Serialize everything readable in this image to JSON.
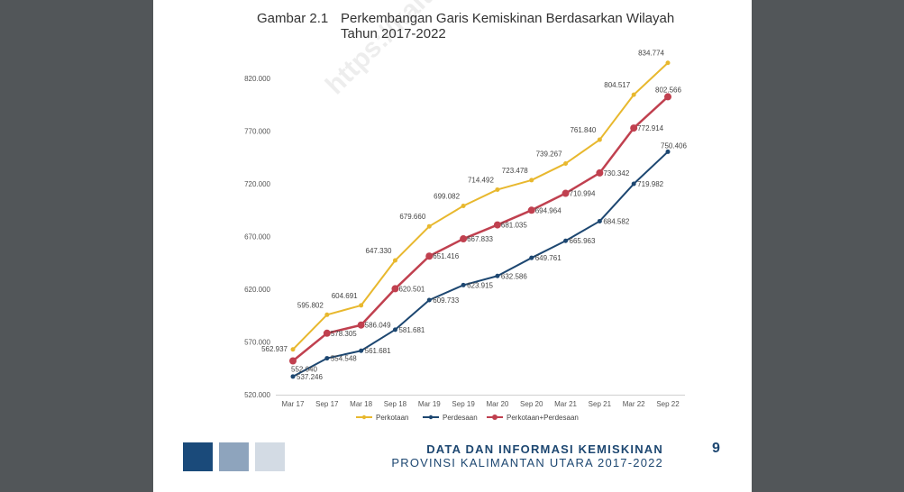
{
  "figure": {
    "number": "Gambar 2.1",
    "caption": "Perkembangan Garis Kemiskinan Berdasarkan Wilayah Tahun 2017-2022"
  },
  "watermark": "https://kaltara...",
  "footer": {
    "title": "DATA DAN INFORMASI KEMISKINAN",
    "subtitle": "PROVINSI KALIMANTAN UTARA 2017-2022",
    "page_number": "9",
    "squares": [
      "#1a4a7a",
      "#8ea4bd",
      "#d3dbe4"
    ]
  },
  "chart_data": {
    "type": "line",
    "title": "",
    "xlabel": "",
    "ylabel": "",
    "ylim": [
      520000,
      840000
    ],
    "yticks": [
      520000,
      570000,
      620000,
      670000,
      720000,
      770000,
      820000
    ],
    "ytick_labels": [
      "520.000",
      "570.000",
      "620.000",
      "670.000",
      "720.000",
      "770.000",
      "820.000"
    ],
    "categories": [
      "Mar 17",
      "Sep 17",
      "Mar 18",
      "Sep 18",
      "Mar 19",
      "Sep 19",
      "Mar 20",
      "Sep 20",
      "Mar 21",
      "Sep 21",
      "Mar 22",
      "Sep 22"
    ],
    "grid": false,
    "legend_position": "bottom",
    "series": [
      {
        "name": "Perkotaan",
        "color": "#e8b82e",
        "values": [
          562937,
          595802,
          604691,
          647330,
          679660,
          699082,
          714492,
          723478,
          739267,
          761840,
          804517,
          834774
        ],
        "labels": [
          "562.937",
          "595.802",
          "604.691",
          "647.330",
          "679.660",
          "699.082",
          "714.492",
          "723.478",
          "739.267",
          "761.840",
          "804.517",
          "834.774"
        ]
      },
      {
        "name": "Perdesaan",
        "color": "#1d4771",
        "values": [
          537246,
          554548,
          561681,
          581681,
          609733,
          623915,
          632586,
          649761,
          665963,
          684582,
          719982,
          750406
        ],
        "labels": [
          "537.246",
          "554.548",
          "561.681",
          "581.681",
          "609.733",
          "623.915",
          "632.586",
          "649.761",
          "665.963",
          "684.582",
          "719.982",
          "750.406"
        ]
      },
      {
        "name": "Perkotaan+Perdesaan",
        "color": "#c0404f",
        "values": [
          552040,
          578305,
          586049,
          620501,
          651416,
          667833,
          681035,
          694964,
          710994,
          730342,
          772914,
          802566
        ],
        "labels": [
          "552.040",
          "578.305",
          "586.049",
          "620.501",
          "651.416",
          "667.833",
          "681.035",
          "694.964",
          "710.994",
          "730.342",
          "772.914",
          "802.566"
        ]
      }
    ]
  }
}
